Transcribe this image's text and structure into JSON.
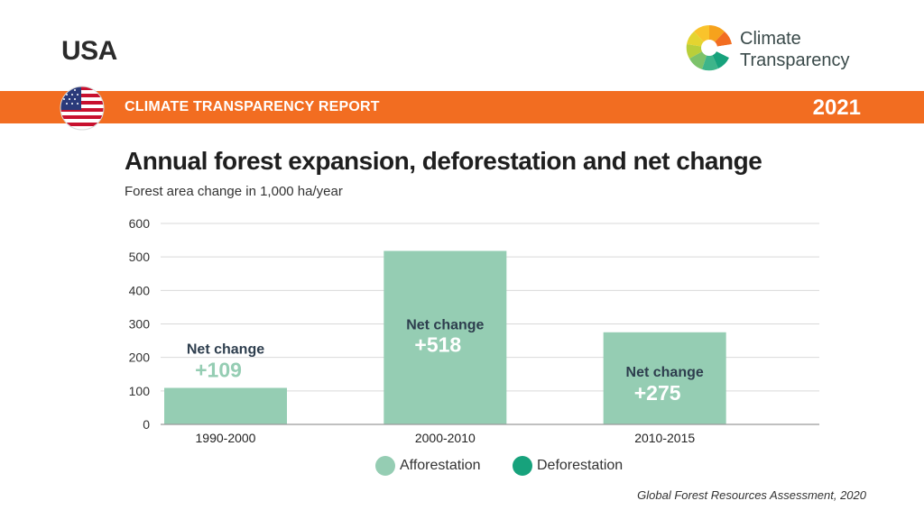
{
  "header": {
    "country": "USA",
    "report_label": "CLIMATE TRANSPARENCY REPORT",
    "year": "2021",
    "band_color": "#f26d21",
    "logo_line1": "Climate",
    "logo_line2": "Transparency",
    "flag_icon": "us-flag-icon",
    "logo_icon": "climate-transparency-logo-icon"
  },
  "chart_data": {
    "type": "bar",
    "title": "Annual forest expansion, deforestation and net change",
    "subtitle": "Forest area change in 1,000 ha/year",
    "categories": [
      "1990-2000",
      "2000-2010",
      "2010-2015"
    ],
    "series": [
      {
        "name": "Afforestation",
        "values": [
          109,
          518,
          275
        ],
        "color": "#95cdb3"
      },
      {
        "name": "Deforestation",
        "values": [
          0,
          0,
          0
        ],
        "color": "#17a27c"
      }
    ],
    "annotations": [
      {
        "category": "1990-2000",
        "label": "Net change",
        "value": "+109",
        "value_color": "#95cdb3"
      },
      {
        "category": "2000-2010",
        "label": "Net change",
        "value": "+518",
        "value_color": "#ffffff"
      },
      {
        "category": "2010-2015",
        "label": "Net change",
        "value": "+275",
        "value_color": "#ffffff"
      }
    ],
    "ylim": [
      0,
      600
    ],
    "yticks": [
      0,
      100,
      200,
      300,
      400,
      500,
      600
    ],
    "grid": true,
    "legend_position": "bottom-center"
  },
  "source": "Global Forest Resources Assessment, 2020"
}
